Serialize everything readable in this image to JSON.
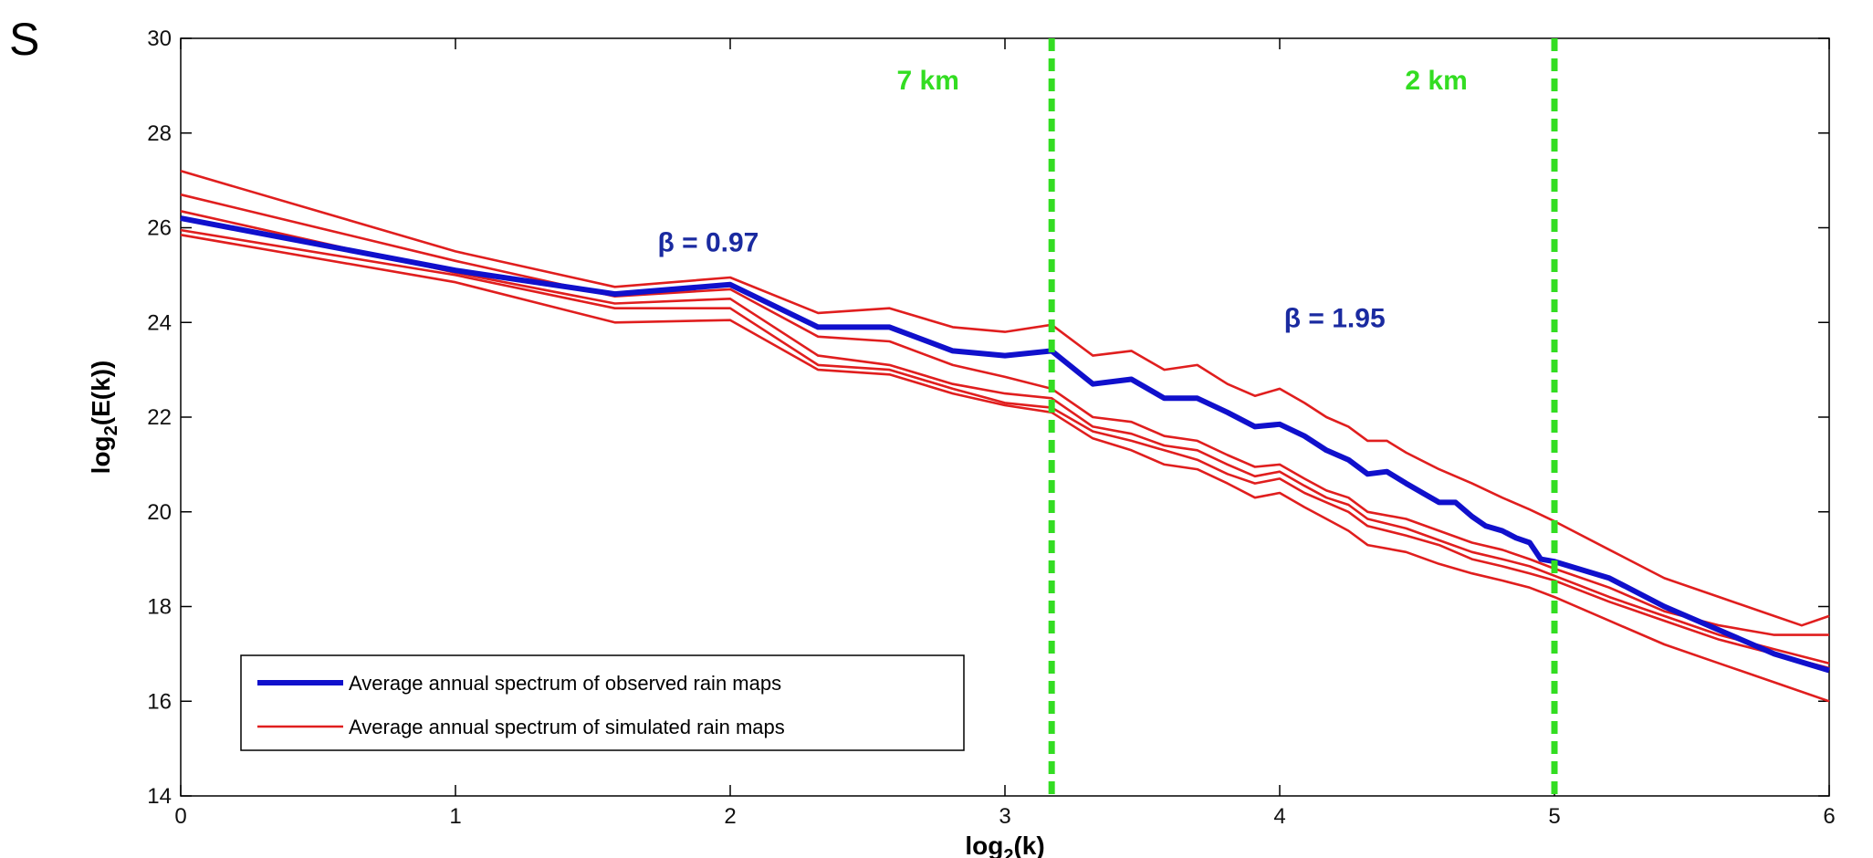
{
  "corner_label": "S",
  "colors": {
    "observed": "#1010cc",
    "simulated": "#e01e1e",
    "scale_lines": "#33dd22",
    "beta_text": "#1a2aa0"
  },
  "chart_data": {
    "type": "line",
    "xlabel": "log",
    "xlabel_sub": "2",
    "xlabel_tail": "(k)",
    "ylabel": "log",
    "ylabel_sub": "2",
    "ylabel_tail": "(E(k))",
    "xlim": [
      0,
      6
    ],
    "ylim": [
      14,
      30
    ],
    "xticks": [
      "0",
      "1",
      "2",
      "3",
      "4",
      "5",
      "6"
    ],
    "yticks": [
      "14",
      "16",
      "18",
      "20",
      "22",
      "24",
      "26",
      "28",
      "30"
    ],
    "grid": false,
    "legend_position": "bottom-left",
    "legend": [
      {
        "label": "Average annual spectrum  of observed rain maps",
        "style": "thick-blue"
      },
      {
        "label": "Average  annual spectrum of simulated rain maps",
        "style": "thin-red"
      }
    ],
    "vlines": [
      {
        "x": 3.17,
        "label": "7 km",
        "label_x": 2.72
      },
      {
        "x": 5.0,
        "label": "2 km",
        "label_x": 4.57
      }
    ],
    "annotations": [
      {
        "text": "β = 0.97",
        "x": 1.92,
        "y": 25.5
      },
      {
        "text": "β = 1.95",
        "x": 4.2,
        "y": 23.9
      }
    ],
    "series": [
      {
        "kind": "observed",
        "points": [
          [
            0,
            26.2
          ],
          [
            1,
            25.1
          ],
          [
            1.58,
            24.6
          ],
          [
            2,
            24.8
          ],
          [
            2.32,
            23.9
          ],
          [
            2.58,
            23.9
          ],
          [
            2.81,
            23.4
          ],
          [
            3,
            23.3
          ],
          [
            3.17,
            23.4
          ],
          [
            3.32,
            22.7
          ],
          [
            3.46,
            22.8
          ],
          [
            3.58,
            22.4
          ],
          [
            3.7,
            22.4
          ],
          [
            3.81,
            22.1
          ],
          [
            3.91,
            21.8
          ],
          [
            4,
            21.85
          ],
          [
            4.09,
            21.6
          ],
          [
            4.17,
            21.3
          ],
          [
            4.25,
            21.1
          ],
          [
            4.32,
            20.8
          ],
          [
            4.39,
            20.85
          ],
          [
            4.46,
            20.6
          ],
          [
            4.52,
            20.4
          ],
          [
            4.58,
            20.2
          ],
          [
            4.64,
            20.2
          ],
          [
            4.7,
            19.9
          ],
          [
            4.75,
            19.7
          ],
          [
            4.81,
            19.6
          ],
          [
            4.86,
            19.45
          ],
          [
            4.91,
            19.35
          ],
          [
            4.95,
            19.0
          ],
          [
            5,
            18.95
          ],
          [
            5.2,
            18.6
          ],
          [
            5.4,
            18.0
          ],
          [
            5.6,
            17.5
          ],
          [
            5.8,
            17.0
          ],
          [
            6,
            16.65
          ]
        ]
      },
      {
        "kind": "simulated",
        "points": [
          [
            0,
            27.2
          ],
          [
            1,
            25.5
          ],
          [
            1.58,
            24.75
          ],
          [
            2,
            24.95
          ],
          [
            2.32,
            24.2
          ],
          [
            2.58,
            24.3
          ],
          [
            2.81,
            23.9
          ],
          [
            3,
            23.8
          ],
          [
            3.17,
            23.95
          ],
          [
            3.32,
            23.3
          ],
          [
            3.46,
            23.4
          ],
          [
            3.58,
            23.0
          ],
          [
            3.7,
            23.1
          ],
          [
            3.81,
            22.7
          ],
          [
            3.91,
            22.45
          ],
          [
            4,
            22.6
          ],
          [
            4.09,
            22.3
          ],
          [
            4.17,
            22.0
          ],
          [
            4.25,
            21.8
          ],
          [
            4.32,
            21.5
          ],
          [
            4.39,
            21.5
          ],
          [
            4.46,
            21.25
          ],
          [
            4.58,
            20.9
          ],
          [
            4.7,
            20.6
          ],
          [
            4.81,
            20.3
          ],
          [
            4.91,
            20.05
          ],
          [
            5,
            19.8
          ],
          [
            5.2,
            19.2
          ],
          [
            5.4,
            18.6
          ],
          [
            5.6,
            18.2
          ],
          [
            5.8,
            17.8
          ],
          [
            5.9,
            17.6
          ],
          [
            6,
            17.8
          ]
        ]
      },
      {
        "kind": "simulated",
        "points": [
          [
            0,
            26.7
          ],
          [
            1,
            25.3
          ],
          [
            1.58,
            24.55
          ],
          [
            2,
            24.7
          ],
          [
            2.32,
            23.7
          ],
          [
            2.58,
            23.6
          ],
          [
            2.81,
            23.1
          ],
          [
            3,
            22.85
          ],
          [
            3.17,
            22.6
          ],
          [
            3.32,
            22.0
          ],
          [
            3.46,
            21.9
          ],
          [
            3.58,
            21.6
          ],
          [
            3.7,
            21.5
          ],
          [
            3.81,
            21.2
          ],
          [
            3.91,
            20.95
          ],
          [
            4,
            21.0
          ],
          [
            4.09,
            20.7
          ],
          [
            4.17,
            20.45
          ],
          [
            4.25,
            20.3
          ],
          [
            4.32,
            20.0
          ],
          [
            4.46,
            19.85
          ],
          [
            4.58,
            19.6
          ],
          [
            4.7,
            19.35
          ],
          [
            4.81,
            19.2
          ],
          [
            4.91,
            19.0
          ],
          [
            5,
            18.8
          ],
          [
            5.2,
            18.4
          ],
          [
            5.4,
            17.9
          ],
          [
            5.6,
            17.6
          ],
          [
            5.8,
            17.4
          ],
          [
            6,
            17.4
          ]
        ]
      },
      {
        "kind": "simulated",
        "points": [
          [
            0,
            26.35
          ],
          [
            1,
            25.05
          ],
          [
            1.58,
            24.4
          ],
          [
            2,
            24.5
          ],
          [
            2.32,
            23.3
          ],
          [
            2.58,
            23.1
          ],
          [
            2.81,
            22.7
          ],
          [
            3,
            22.5
          ],
          [
            3.17,
            22.4
          ],
          [
            3.32,
            21.8
          ],
          [
            3.46,
            21.65
          ],
          [
            3.58,
            21.4
          ],
          [
            3.7,
            21.3
          ],
          [
            3.81,
            21.0
          ],
          [
            3.91,
            20.75
          ],
          [
            4,
            20.85
          ],
          [
            4.09,
            20.55
          ],
          [
            4.17,
            20.3
          ],
          [
            4.25,
            20.15
          ],
          [
            4.32,
            19.85
          ],
          [
            4.46,
            19.65
          ],
          [
            4.58,
            19.4
          ],
          [
            4.7,
            19.15
          ],
          [
            4.81,
            19.0
          ],
          [
            4.91,
            18.85
          ],
          [
            5,
            18.65
          ],
          [
            5.2,
            18.2
          ],
          [
            5.4,
            17.8
          ],
          [
            5.6,
            17.4
          ],
          [
            5.8,
            17.1
          ],
          [
            6,
            16.8
          ]
        ]
      },
      {
        "kind": "simulated",
        "points": [
          [
            0,
            25.95
          ],
          [
            1,
            25.0
          ],
          [
            1.58,
            24.3
          ],
          [
            2,
            24.3
          ],
          [
            2.32,
            23.1
          ],
          [
            2.58,
            23.0
          ],
          [
            2.81,
            22.6
          ],
          [
            3,
            22.3
          ],
          [
            3.17,
            22.2
          ],
          [
            3.32,
            21.7
          ],
          [
            3.46,
            21.5
          ],
          [
            3.58,
            21.3
          ],
          [
            3.7,
            21.1
          ],
          [
            3.81,
            20.8
          ],
          [
            3.91,
            20.6
          ],
          [
            4,
            20.7
          ],
          [
            4.09,
            20.4
          ],
          [
            4.17,
            20.2
          ],
          [
            4.25,
            20.0
          ],
          [
            4.32,
            19.7
          ],
          [
            4.46,
            19.5
          ],
          [
            4.58,
            19.3
          ],
          [
            4.7,
            19.0
          ],
          [
            4.81,
            18.85
          ],
          [
            4.91,
            18.7
          ],
          [
            5,
            18.55
          ],
          [
            5.2,
            18.1
          ],
          [
            5.4,
            17.7
          ],
          [
            5.6,
            17.3
          ],
          [
            5.8,
            17.0
          ],
          [
            6,
            16.7
          ]
        ]
      },
      {
        "kind": "simulated",
        "points": [
          [
            0,
            25.85
          ],
          [
            1,
            24.85
          ],
          [
            1.58,
            24.0
          ],
          [
            2,
            24.05
          ],
          [
            2.32,
            23.0
          ],
          [
            2.58,
            22.9
          ],
          [
            2.81,
            22.5
          ],
          [
            3,
            22.25
          ],
          [
            3.17,
            22.1
          ],
          [
            3.32,
            21.55
          ],
          [
            3.46,
            21.3
          ],
          [
            3.58,
            21.0
          ],
          [
            3.7,
            20.9
          ],
          [
            3.81,
            20.6
          ],
          [
            3.91,
            20.3
          ],
          [
            4,
            20.4
          ],
          [
            4.09,
            20.1
          ],
          [
            4.17,
            19.85
          ],
          [
            4.25,
            19.6
          ],
          [
            4.32,
            19.3
          ],
          [
            4.46,
            19.15
          ],
          [
            4.58,
            18.9
          ],
          [
            4.7,
            18.7
          ],
          [
            4.81,
            18.55
          ],
          [
            4.91,
            18.4
          ],
          [
            5,
            18.2
          ],
          [
            5.2,
            17.7
          ],
          [
            5.4,
            17.2
          ],
          [
            5.6,
            16.8
          ],
          [
            5.8,
            16.4
          ],
          [
            6,
            16.0
          ]
        ]
      }
    ]
  }
}
